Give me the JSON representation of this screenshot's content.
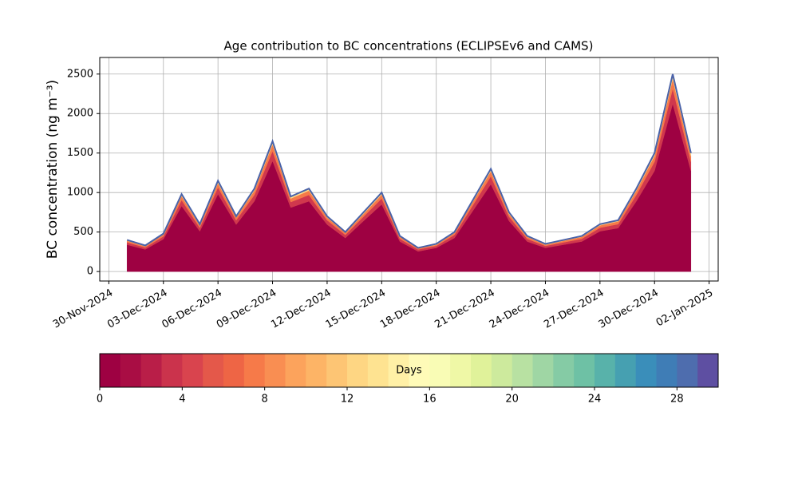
{
  "chart_data": {
    "type": "stacked_area",
    "title": "Age contribution to BC concentrations (ECLIPSEv6 and CAMS)",
    "y_label": "BC concentration (ng m⁻³)",
    "x": [
      "2024-12-01",
      "2024-12-02",
      "2024-12-03",
      "2024-12-04",
      "2024-12-05",
      "2024-12-06",
      "2024-12-07",
      "2024-12-08",
      "2024-12-09",
      "2024-12-10",
      "2024-12-11",
      "2024-12-12",
      "2024-12-13",
      "2024-12-14",
      "2024-12-15",
      "2024-12-16",
      "2024-12-17",
      "2024-12-18",
      "2024-12-19",
      "2024-12-20",
      "2024-12-21",
      "2024-12-22",
      "2024-12-23",
      "2024-12-24",
      "2024-12-25",
      "2024-12-26",
      "2024-12-27",
      "2024-12-28",
      "2024-12-29",
      "2024-12-30",
      "2024-12-31",
      "2025-01-01"
    ],
    "series": [
      {
        "color": "#9e0142",
        "values": [
          340,
          280,
          410,
          830,
          510,
          980,
          595,
          890,
          1400,
          810,
          890,
          595,
          425,
          640,
          850,
          380,
          255,
          300,
          425,
          765,
          1105,
          640,
          380,
          300,
          340,
          380,
          510,
          550,
          890,
          1275,
          2125,
          1275
        ]
      },
      {
        "color": "#d0384d",
        "values": [
          30,
          25,
          35,
          75,
          45,
          85,
          55,
          80,
          125,
          70,
          80,
          55,
          40,
          55,
          75,
          35,
          25,
          25,
          40,
          70,
          100,
          55,
          35,
          25,
          30,
          35,
          45,
          50,
          80,
          115,
          190,
          115
        ]
      },
      {
        "color": "#f67a49",
        "values": [
          20,
          15,
          25,
          50,
          30,
          55,
          35,
          55,
          85,
          45,
          55,
          35,
          25,
          35,
          50,
          25,
          15,
          15,
          25,
          45,
          65,
          35,
          25,
          15,
          20,
          25,
          30,
          35,
          55,
          75,
          125,
          75
        ]
      },
      {
        "color": "#fee08b",
        "values": [
          10,
          10,
          10,
          25,
          15,
          30,
          15,
          25,
          40,
          25,
          25,
          15,
          10,
          20,
          25,
          10,
          5,
          10,
          10,
          20,
          30,
          20,
          10,
          10,
          10,
          10,
          15,
          15,
          25,
          35,
          60,
          35
        ]
      }
    ],
    "outline_color": "#4a62a8",
    "ylim": [
      -120,
      2710
    ],
    "yticks": [
      0,
      500,
      1000,
      1500,
      2000,
      2500
    ],
    "xlim": [
      "2024-11-29T12:00",
      "2025-01-02T12:00"
    ],
    "xticks": [
      {
        "value": "2024-11-30",
        "label": "30-Nov-2024"
      },
      {
        "value": "2024-12-03",
        "label": "03-Dec-2024"
      },
      {
        "value": "2024-12-06",
        "label": "06-Dec-2024"
      },
      {
        "value": "2024-12-09",
        "label": "09-Dec-2024"
      },
      {
        "value": "2024-12-12",
        "label": "12-Dec-2024"
      },
      {
        "value": "2024-12-15",
        "label": "15-Dec-2024"
      },
      {
        "value": "2024-12-18",
        "label": "18-Dec-2024"
      },
      {
        "value": "2024-12-21",
        "label": "21-Dec-2024"
      },
      {
        "value": "2024-12-24",
        "label": "24-Dec-2024"
      },
      {
        "value": "2024-12-27",
        "label": "27-Dec-2024"
      },
      {
        "value": "2024-12-30",
        "label": "30-Dec-2024"
      },
      {
        "value": "2025-01-02",
        "label": "02-Jan-2025"
      }
    ],
    "grid": true,
    "colorbar": {
      "label": "Days",
      "lim": [
        0,
        30
      ],
      "ticks": [
        0,
        4,
        8,
        12,
        16,
        20,
        24,
        28
      ],
      "colors": [
        "#9e0142",
        "#a90d44",
        "#b91e48",
        "#cb334c",
        "#d9444e",
        "#e4584a",
        "#ee6545",
        "#f67a49",
        "#f98e52",
        "#fca35c",
        "#fdb466",
        "#fdc574",
        "#fed683",
        "#fee391",
        "#fff0a6",
        "#fffbb8",
        "#f9fcb5",
        "#eff8a6",
        "#e0f29a",
        "#cdea9d",
        "#b8e1a2",
        "#9fd6a4",
        "#85cba5",
        "#6ec1a5",
        "#58b2aa",
        "#46a0b1",
        "#3a8eba",
        "#3f7db6",
        "#4e6dae",
        "#5e4fa2"
      ]
    }
  }
}
